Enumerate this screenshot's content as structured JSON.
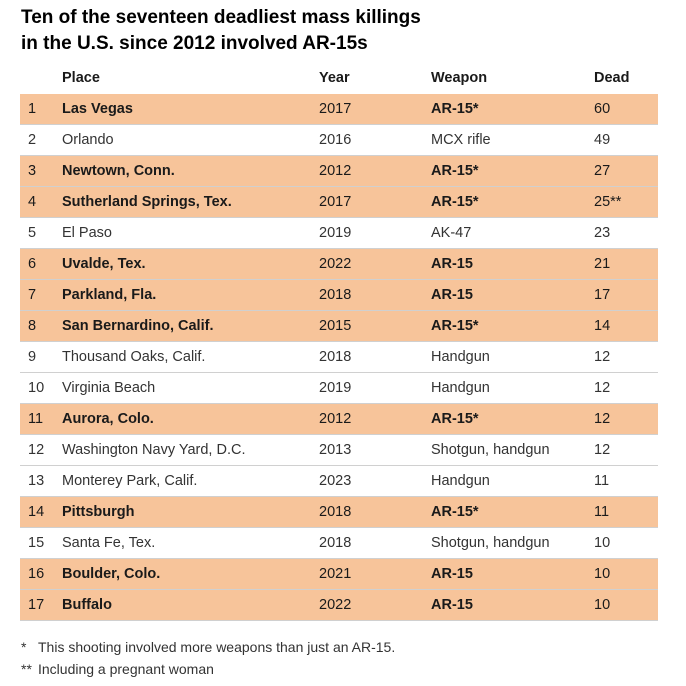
{
  "title_line_1": "Ten of the seventeen deadliest mass killings",
  "title_line_2": "in the U.S. since 2012 involved AR-15s",
  "headers": {
    "place": "Place",
    "year": "Year",
    "weapon": "Weapon",
    "dead": "Dead"
  },
  "highlight_color": "#f7c49a",
  "chart_data": {
    "type": "table",
    "columns": [
      "",
      "Place",
      "Year",
      "Weapon",
      "Dead"
    ],
    "rows": [
      {
        "rank": "1",
        "place": "Las Vegas",
        "year": "2017",
        "weapon": "AR-15*",
        "dead": "60",
        "ar15": true
      },
      {
        "rank": "2",
        "place": "Orlando",
        "year": "2016",
        "weapon": "MCX rifle",
        "dead": "49",
        "ar15": false
      },
      {
        "rank": "3",
        "place": "Newtown, Conn.",
        "year": "2012",
        "weapon": "AR-15*",
        "dead": "27",
        "ar15": true
      },
      {
        "rank": "4",
        "place": "Sutherland Springs, Tex.",
        "year": "2017",
        "weapon": "AR-15*",
        "dead": "25**",
        "ar15": true
      },
      {
        "rank": "5",
        "place": "El Paso",
        "year": "2019",
        "weapon": "AK-47",
        "dead": "23",
        "ar15": false
      },
      {
        "rank": "6",
        "place": "Uvalde, Tex.",
        "year": "2022",
        "weapon": "AR-15",
        "dead": "21",
        "ar15": true
      },
      {
        "rank": "7",
        "place": "Parkland, Fla.",
        "year": "2018",
        "weapon": "AR-15",
        "dead": "17",
        "ar15": true
      },
      {
        "rank": "8",
        "place": "San Bernardino, Calif.",
        "year": "2015",
        "weapon": "AR-15*",
        "dead": "14",
        "ar15": true
      },
      {
        "rank": "9",
        "place": "Thousand Oaks, Calif.",
        "year": "2018",
        "weapon": "Handgun",
        "dead": "12",
        "ar15": false
      },
      {
        "rank": "10",
        "place": "Virginia Beach",
        "year": "2019",
        "weapon": "Handgun",
        "dead": "12",
        "ar15": false
      },
      {
        "rank": "11",
        "place": "Aurora, Colo.",
        "year": "2012",
        "weapon": "AR-15*",
        "dead": "12",
        "ar15": true
      },
      {
        "rank": "12",
        "place": "Washington Navy Yard, D.C.",
        "year": "2013",
        "weapon": "Shotgun, handgun",
        "dead": "12",
        "ar15": false
      },
      {
        "rank": "13",
        "place": "Monterey Park, Calif.",
        "year": "2023",
        "weapon": "Handgun",
        "dead": "11",
        "ar15": false
      },
      {
        "rank": "14",
        "place": "Pittsburgh",
        "year": "2018",
        "weapon": "AR-15*",
        "dead": "11",
        "ar15": true
      },
      {
        "rank": "15",
        "place": "Santa Fe, Tex.",
        "year": "2018",
        "weapon": "Shotgun, handgun",
        "dead": "10",
        "ar15": false
      },
      {
        "rank": "16",
        "place": "Boulder, Colo.",
        "year": "2021",
        "weapon": "AR-15",
        "dead": "10",
        "ar15": true
      },
      {
        "rank": "17",
        "place": "Buffalo",
        "year": "2022",
        "weapon": "AR-15",
        "dead": "10",
        "ar15": true
      }
    ]
  },
  "notes": {
    "note_1_symbol": "*",
    "note_1_text": "This shooting involved more weapons than just an AR-15.",
    "note_2_symbol": "**",
    "note_2_text": "Including a pregnant woman"
  }
}
